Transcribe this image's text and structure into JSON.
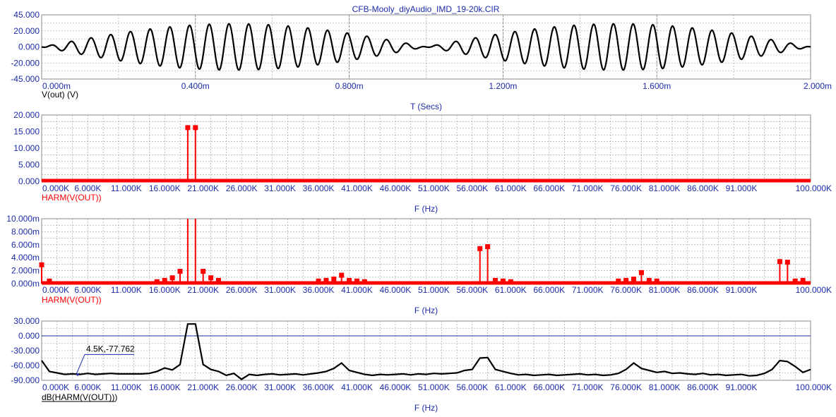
{
  "window": {
    "title": "CFB-Mooly_diyAudio_IMD_19-20k.CIR"
  },
  "colors": {
    "axis_text": "#1c2ca8",
    "grid": "#9a9a9a",
    "trace_black": "#000000",
    "trace_red": "#ff0000",
    "baseline_blue": "#1c2ca8"
  },
  "chart_data": [
    {
      "id": "time",
      "type": "line",
      "series": [
        {
          "name": "V(out) (V)",
          "color": "#000000"
        }
      ],
      "y_ticks": [
        "45.000",
        "20.000",
        "0.000",
        "-20.000",
        "-45.000"
      ],
      "ylim": [
        -45,
        45
      ],
      "x_ticks": [
        "0.000m",
        "0.400m",
        "0.800m",
        "1.200m",
        "1.600m",
        "2.000m"
      ],
      "xlim": [
        0,
        2.0
      ],
      "xlabel": "T (Secs)",
      "trace_label": "V(out) (V)",
      "signal": {
        "tone1_khz": 19,
        "tone2_khz": 20,
        "amplitude_each": 16.2
      }
    },
    {
      "id": "spectrum_lin",
      "type": "bar",
      "series": [
        {
          "name": "HARM(V(OUT))",
          "color": "#ff0000"
        }
      ],
      "y_ticks": [
        "20.000",
        "15.000",
        "10.000",
        "5.000",
        "0.000"
      ],
      "ylim": [
        0,
        20
      ],
      "x_ticks": [
        "0.000K",
        "6.000K",
        "11.000K",
        "16.000K",
        "21.000K",
        "26.000K",
        "31.000K",
        "36.000K",
        "41.000K",
        "46.000K",
        "51.000K",
        "56.000K",
        "61.000K",
        "66.000K",
        "71.000K",
        "76.000K",
        "81.000K",
        "86.000K",
        "91.000K",
        "100.000K"
      ],
      "xlim": [
        0,
        100
      ],
      "xlabel": "F (Hz)",
      "trace_label": "HARM(V(OUT))",
      "x": [
        19,
        20
      ],
      "y": [
        16.2,
        16.2
      ]
    },
    {
      "id": "spectrum_zoom",
      "type": "bar",
      "series": [
        {
          "name": "HARM(V(OUT))",
          "color": "#ff0000"
        }
      ],
      "y_ticks": [
        "10.000m",
        "8.000m",
        "6.000m",
        "4.000m",
        "2.000m",
        "0.000m"
      ],
      "ylim": [
        0,
        10
      ],
      "x_ticks": [
        "0.000K",
        "6.000K",
        "11.000K",
        "16.000K",
        "21.000K",
        "26.000K",
        "31.000K",
        "36.000K",
        "41.000K",
        "46.000K",
        "51.000K",
        "56.000K",
        "61.000K",
        "66.000K",
        "71.000K",
        "76.000K",
        "81.000K",
        "86.000K",
        "91.000K",
        "100.000K"
      ],
      "xlim": [
        0,
        100
      ],
      "xlabel": "F (Hz)",
      "trace_label": "HARM(V(OUT))",
      "x": [
        0,
        1,
        15,
        16,
        17,
        18,
        19,
        20,
        21,
        22,
        23,
        36,
        37,
        38,
        39,
        40,
        41,
        42,
        57,
        58,
        59,
        60,
        61,
        75,
        76,
        77,
        78,
        79,
        80,
        96,
        97,
        98,
        99
      ],
      "y": [
        2.9,
        0.4,
        0.3,
        0.5,
        0.9,
        1.9,
        10,
        10,
        1.9,
        0.9,
        0.5,
        0.4,
        0.5,
        0.7,
        1.3,
        0.5,
        0.4,
        0.3,
        5.4,
        5.7,
        0.5,
        0.4,
        0.3,
        0.4,
        0.5,
        0.7,
        1.7,
        0.5,
        0.4,
        3.4,
        3.3,
        0.4,
        0.5
      ]
    },
    {
      "id": "spectrum_db",
      "type": "line",
      "series": [
        {
          "name": "dB(HARM(V(OUT)))",
          "color": "#000000"
        }
      ],
      "y_ticks": [
        "30.000",
        "0.000",
        "-30.000",
        "-60.000",
        "-90.000"
      ],
      "ylim": [
        -90,
        30
      ],
      "x_ticks": [
        "0.000K",
        "6.000K",
        "11.000K",
        "16.000K",
        "21.000K",
        "26.000K",
        "31.000K",
        "36.000K",
        "41.000K",
        "46.000K",
        "51.000K",
        "56.000K",
        "61.000K",
        "66.000K",
        "71.000K",
        "76.000K",
        "81.000K",
        "86.000K",
        "91.000K",
        "100.000K"
      ],
      "xlim": [
        0,
        100
      ],
      "xlabel": "F (Hz)",
      "trace_label": "dB(HARM(V(OUT)))",
      "reference_line_y": 0,
      "annotation": {
        "text": "4.5K,-77.762",
        "x": 4.5,
        "y": -77.762
      },
      "x": [
        0,
        1,
        2,
        3,
        4,
        5,
        6,
        7,
        8,
        9,
        10,
        11,
        12,
        13,
        14,
        15,
        16,
        17,
        18,
        19,
        20,
        21,
        22,
        23,
        24,
        25,
        26,
        27,
        28,
        29,
        30,
        31,
        32,
        33,
        34,
        35,
        36,
        37,
        38,
        39,
        40,
        41,
        42,
        43,
        44,
        45,
        46,
        47,
        48,
        49,
        50,
        51,
        52,
        53,
        54,
        55,
        56,
        57,
        58,
        59,
        60,
        61,
        62,
        63,
        64,
        65,
        66,
        67,
        68,
        69,
        70,
        71,
        72,
        73,
        74,
        75,
        76,
        77,
        78,
        79,
        80,
        81,
        82,
        83,
        84,
        85,
        86,
        87,
        88,
        89,
        90,
        91,
        92,
        93,
        94,
        95,
        96,
        97,
        98,
        99,
        100
      ],
      "y": [
        -50,
        -72,
        -75,
        -78,
        -77,
        -78,
        -76,
        -78,
        -77,
        -76,
        -77,
        -77,
        -77,
        -77,
        -76,
        -72,
        -65,
        -69,
        -58,
        24,
        24,
        -58,
        -68,
        -72,
        -80,
        -76,
        -88,
        -78,
        -80,
        -78,
        -77,
        -79,
        -78,
        -77,
        -79,
        -77,
        -75,
        -72,
        -66,
        -55,
        -70,
        -74,
        -78,
        -80,
        -78,
        -79,
        -78,
        -77,
        -79,
        -77,
        -78,
        -76,
        -77,
        -76,
        -75,
        -70,
        -68,
        -45,
        -44,
        -68,
        -72,
        -76,
        -79,
        -78,
        -80,
        -79,
        -78,
        -80,
        -79,
        -78,
        -77,
        -79,
        -78,
        -80,
        -79,
        -76,
        -68,
        -55,
        -66,
        -70,
        -74,
        -72,
        -76,
        -75,
        -77,
        -78,
        -76,
        -79,
        -78,
        -80,
        -79,
        -78,
        -81,
        -80,
        -76,
        -68,
        -50,
        -52,
        -62,
        -74,
        -68
      ]
    }
  ]
}
